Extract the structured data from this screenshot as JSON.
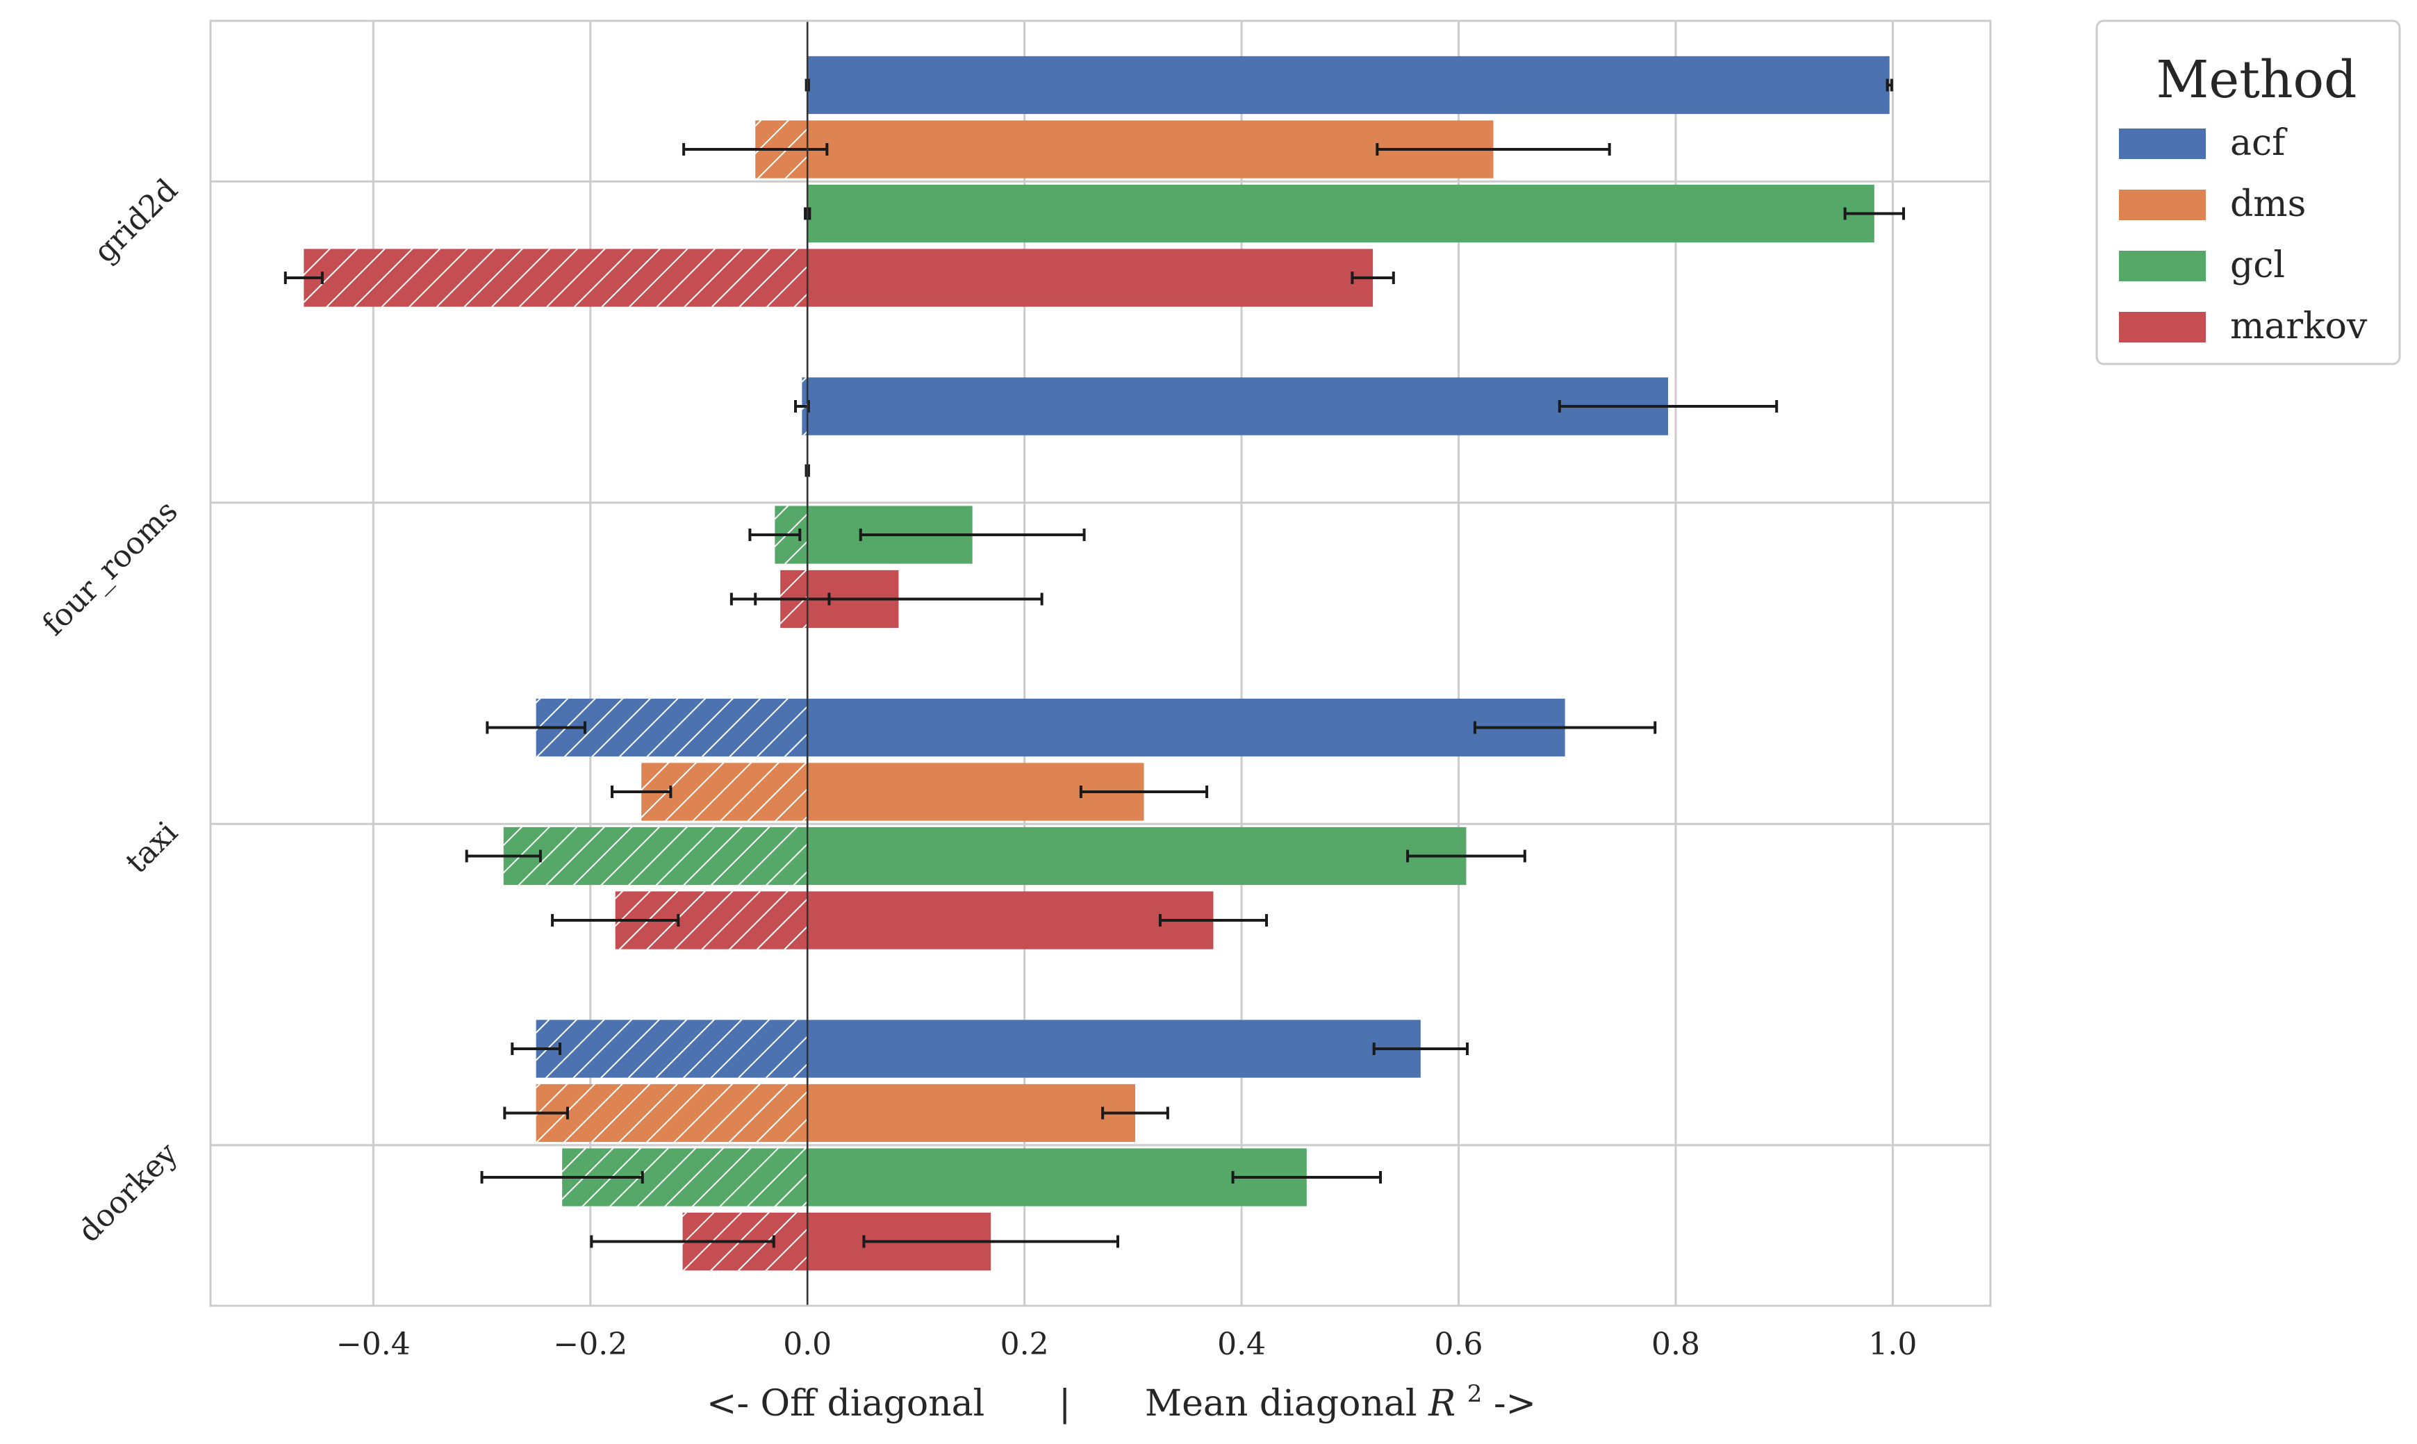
{
  "chart_data": {
    "type": "bar",
    "orientation": "horizontal",
    "categories": [
      "grid2d",
      "four_rooms",
      "taxi",
      "doorkey"
    ],
    "xlim": [
      -0.55,
      1.09
    ],
    "xticks": [
      -0.4,
      -0.2,
      0.0,
      0.2,
      0.4,
      0.6,
      0.8,
      1.0
    ],
    "xtick_labels": [
      "−0.4",
      "−0.2",
      "0.0",
      "0.2",
      "0.4",
      "0.6",
      "0.8",
      "1.0"
    ],
    "xlabel_left": "<- Off diagonal",
    "xlabel_sep": "|",
    "xlabel_right_prefix": "Mean diagonal ",
    "xlabel_right_sym": "R",
    "xlabel_right_sup": "2",
    "xlabel_right_suffix": " ->",
    "grid": true,
    "hatched_side": "negative (off diagonal)",
    "legend": {
      "title": "Method",
      "placement": "outside upper right",
      "entries": [
        "acf",
        "dms",
        "gcl",
        "markov"
      ]
    },
    "series": [
      {
        "name": "acf",
        "color": "#4c72b0",
        "diagonal": [
          0.997,
          0.793,
          0.698,
          0.565
        ],
        "diagonal_err": [
          0.002,
          0.1,
          0.083,
          0.043
        ],
        "off_diagonal": [
          0.0,
          -0.005,
          -0.25,
          -0.25
        ],
        "off_diagonal_err": [
          0.001,
          0.006,
          0.045,
          0.022
        ]
      },
      {
        "name": "dms",
        "color": "#dd8452",
        "diagonal": [
          0.632,
          0.0,
          0.31,
          0.302
        ],
        "diagonal_err": [
          0.107,
          0.001,
          0.058,
          0.03
        ],
        "off_diagonal": [
          -0.048,
          0.0,
          -0.153,
          -0.25
        ],
        "off_diagonal_err": [
          0.066,
          0.001,
          0.027,
          0.029
        ]
      },
      {
        "name": "gcl",
        "color": "#55a868",
        "diagonal": [
          0.983,
          0.152,
          0.607,
          0.46
        ],
        "diagonal_err": [
          0.027,
          0.103,
          0.054,
          0.068
        ],
        "off_diagonal": [
          0.0,
          -0.03,
          -0.28,
          -0.226
        ],
        "off_diagonal_err": [
          0.002,
          0.023,
          0.034,
          0.074
        ]
      },
      {
        "name": "markov",
        "color": "#c44e52",
        "diagonal": [
          0.521,
          0.084,
          0.374,
          0.169
        ],
        "diagonal_err": [
          0.019,
          0.132,
          0.049,
          0.117
        ],
        "off_diagonal": [
          -0.464,
          -0.025,
          -0.177,
          -0.115
        ],
        "off_diagonal_err": [
          0.017,
          0.045,
          0.058,
          0.084
        ]
      }
    ]
  }
}
